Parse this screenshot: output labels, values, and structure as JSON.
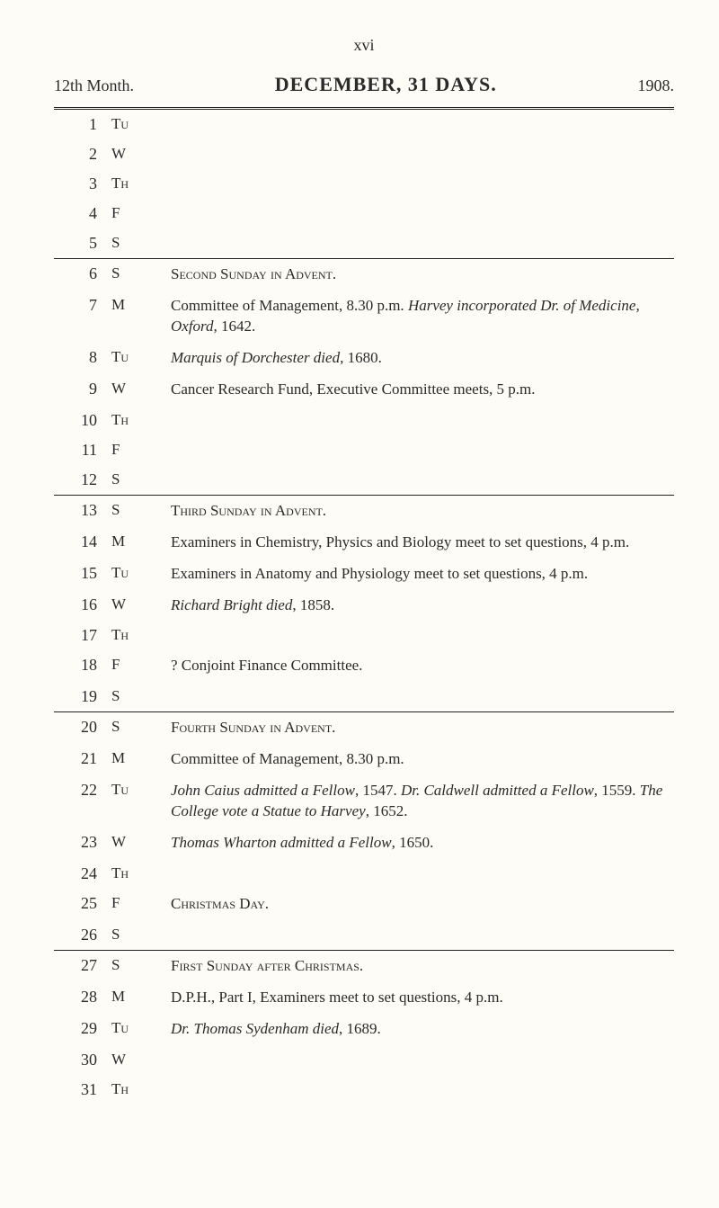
{
  "pageNumber": "xvi",
  "header": {
    "left": "12th Month.",
    "center": "DECEMBER, 31 DAYS.",
    "right": "1908."
  },
  "weeks": [
    {
      "rows": [
        {
          "day": "1",
          "wd": "Tu",
          "desc": ""
        },
        {
          "day": "2",
          "wd": "W",
          "desc": ""
        },
        {
          "day": "3",
          "wd": "Th",
          "desc": ""
        },
        {
          "day": "4",
          "wd": "F",
          "desc": ""
        },
        {
          "day": "5",
          "wd": "S",
          "desc": ""
        }
      ]
    },
    {
      "rows": [
        {
          "day": "6",
          "wd": "S",
          "desc": "<span class=\"smallcaps\">Second Sunday in Advent.</span>"
        },
        {
          "day": "7",
          "wd": "M",
          "desc": "Committee of Management, 8.30 p.m. <span class=\"italic\">Harvey incorporated Dr. of Medicine, Oxford</span>, 1642."
        },
        {
          "day": "8",
          "wd": "Tu",
          "desc": "<span class=\"italic\">Marquis of Dorchester died</span>, 1680."
        },
        {
          "day": "9",
          "wd": "W",
          "desc": "Cancer Research Fund, Executive Committee meets, 5 p.m."
        },
        {
          "day": "10",
          "wd": "Th",
          "desc": ""
        },
        {
          "day": "11",
          "wd": "F",
          "desc": ""
        },
        {
          "day": "12",
          "wd": "S",
          "desc": ""
        }
      ]
    },
    {
      "rows": [
        {
          "day": "13",
          "wd": "S",
          "desc": "<span class=\"smallcaps\">Third Sunday in Advent.</span>"
        },
        {
          "day": "14",
          "wd": "M",
          "desc": "Examiners in Chemistry, Physics and Biology meet to set questions, 4 p.m."
        },
        {
          "day": "15",
          "wd": "Tu",
          "desc": "Examiners in Anatomy and Physiology meet to set questions, 4 p.m."
        },
        {
          "day": "16",
          "wd": "W",
          "desc": "<span class=\"italic\">Richard Bright died</span>, 1858."
        },
        {
          "day": "17",
          "wd": "Th",
          "desc": ""
        },
        {
          "day": "18",
          "wd": "F",
          "desc": "? Conjoint Finance Committee."
        },
        {
          "day": "19",
          "wd": "S",
          "desc": ""
        }
      ]
    },
    {
      "rows": [
        {
          "day": "20",
          "wd": "S",
          "desc": "<span class=\"smallcaps\">Fourth Sunday in Advent.</span>"
        },
        {
          "day": "21",
          "wd": "M",
          "desc": "Committee of Management, 8.30 p.m."
        },
        {
          "day": "22",
          "wd": "Tu",
          "desc": "<span class=\"italic\">John Caius admitted a Fellow</span>, 1547. <span class=\"italic\">Dr. Caldwell admitted a Fellow</span>, 1559. <span class=\"italic\">The College vote a Statue to Harvey</span>, 1652."
        },
        {
          "day": "23",
          "wd": "W",
          "desc": "<span class=\"italic\">Thomas Wharton admitted a Fellow</span>, 1650."
        },
        {
          "day": "24",
          "wd": "Th",
          "desc": ""
        },
        {
          "day": "25",
          "wd": "F",
          "desc": "<span class=\"smallcaps\">Christmas Day.</span>"
        },
        {
          "day": "26",
          "wd": "S",
          "desc": ""
        }
      ]
    },
    {
      "rows": [
        {
          "day": "27",
          "wd": "S",
          "desc": "<span class=\"smallcaps\">First Sunday after Christmas.</span>"
        },
        {
          "day": "28",
          "wd": "M",
          "desc": "D.P.H., Part I, Examiners meet to set questions, 4 p.m."
        },
        {
          "day": "29",
          "wd": "Tu",
          "desc": "<span class=\"italic\">Dr. Thomas Sydenham died</span>, 1689."
        },
        {
          "day": "30",
          "wd": "W",
          "desc": ""
        },
        {
          "day": "31",
          "wd": "Th",
          "desc": ""
        }
      ]
    }
  ]
}
